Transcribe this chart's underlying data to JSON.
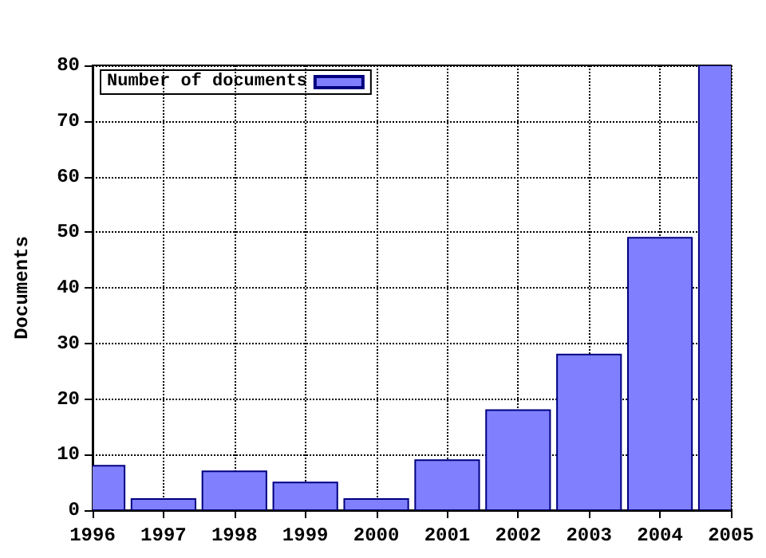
{
  "chart_data": {
    "type": "bar",
    "ylabel": "Documents",
    "x": [
      1996,
      1997,
      1998,
      1999,
      2000,
      2001,
      2002,
      2003,
      2004,
      2005
    ],
    "series": [
      {
        "name": "Number of documents",
        "color": "#8080ff",
        "values": [
          8,
          2,
          7,
          5,
          2,
          9,
          18,
          28,
          49,
          80
        ]
      }
    ],
    "xlim": [
      1996,
      2005
    ],
    "xticks": [
      1996,
      1997,
      1998,
      1999,
      2000,
      2001,
      2002,
      2003,
      2004,
      2005
    ],
    "ylim": [
      0,
      80
    ],
    "yticks": [
      0,
      10,
      20,
      30,
      40,
      50,
      60,
      70,
      80
    ],
    "grid": true,
    "legend": "top left"
  }
}
